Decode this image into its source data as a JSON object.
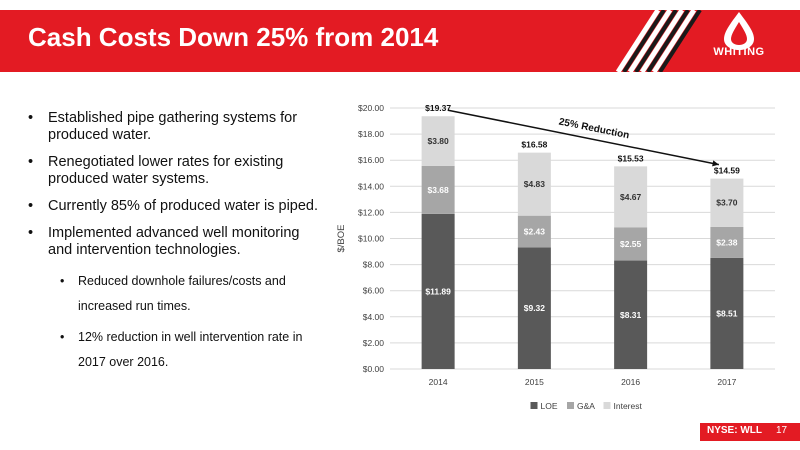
{
  "slide": {
    "title": "Cash Costs Down 25% from 2014",
    "logo_text": "WHITING",
    "ticker": "NYSE: WLL",
    "page_number": "17",
    "colors": {
      "brand_red": "#e31b23",
      "loe": "#595959",
      "ga": "#a6a6a6",
      "interest": "#d9d9d9"
    }
  },
  "bullets": [
    {
      "text": "Established pipe gathering systems for produced water."
    },
    {
      "text": "Renegotiated lower rates for existing produced water systems."
    },
    {
      "text": "Currently  85% of produced water is piped."
    },
    {
      "text": "Implemented advanced well monitoring and intervention technologies."
    }
  ],
  "sub_bullets": [
    {
      "text": "Reduced downhole failures/costs and increased run times."
    },
    {
      "text": "12% reduction in well intervention rate in 2017 over 2016."
    }
  ],
  "chart_data": {
    "type": "bar",
    "stacked": true,
    "categories": [
      "2014",
      "2015",
      "2016",
      "2017"
    ],
    "series": [
      {
        "name": "LOE",
        "values": [
          11.89,
          9.32,
          8.31,
          8.51
        ],
        "labels": [
          "$11.89",
          "$9.32",
          "$8.31",
          "$8.51"
        ]
      },
      {
        "name": "G&A",
        "values": [
          3.68,
          2.43,
          2.55,
          2.38
        ],
        "labels": [
          "$3.68",
          "$2.43",
          "$2.55",
          "$2.38"
        ]
      },
      {
        "name": "Interest",
        "values": [
          3.8,
          4.83,
          4.67,
          3.7
        ],
        "labels": [
          "$3.80",
          "$4.83",
          "$4.67",
          "$3.70"
        ]
      }
    ],
    "totals": [
      19.37,
      16.58,
      15.53,
      14.59
    ],
    "total_labels": [
      "$19.37",
      "$16.58",
      "$15.53",
      "$14.59"
    ],
    "ylabel": "$/BOE",
    "ylim": [
      0,
      20
    ],
    "yticks": [
      0,
      2,
      4,
      6,
      8,
      10,
      12,
      14,
      16,
      18,
      20
    ],
    "ytick_labels": [
      "$0.00",
      "$2.00",
      "$4.00",
      "$6.00",
      "$8.00",
      "$10.00",
      "$12.00",
      "$14.00",
      "$16.00",
      "$18.00",
      "$20.00"
    ],
    "grid": true,
    "legend_position": "bottom",
    "annotation": "25% Reduction"
  }
}
